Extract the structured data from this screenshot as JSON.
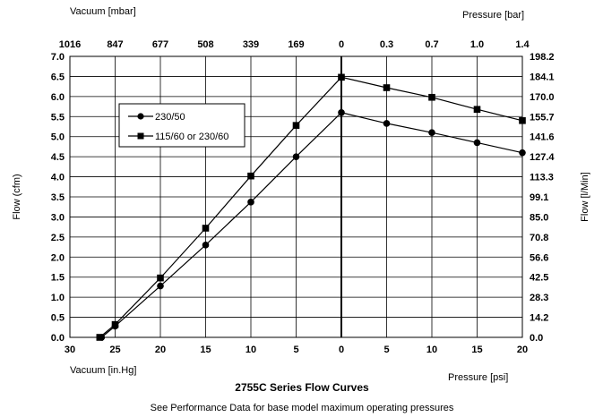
{
  "chart_data": {
    "type": "line",
    "title": "2755C Series Flow Curves",
    "subtitle": "See Performance Data for base model maximum operating pressures",
    "ylabel_left": "Flow (cfm)",
    "ylabel_right": "Flow [l/Min]",
    "xlabel_bottom_left": "Vacuum [in.Hg]",
    "xlabel_bottom_right": "Pressure [psi]",
    "xlabel_top_left": "Vacuum [mbar]",
    "xlabel_top_right": "Pressure [bar]",
    "ylim": [
      0,
      7
    ],
    "xlim": [
      -30,
      20
    ],
    "y_ticks": [
      "0.0",
      "0.5",
      "1.0",
      "1.5",
      "2.0",
      "2.5",
      "3.0",
      "3.5",
      "4.0",
      "4.5",
      "5.0",
      "5.5",
      "6.0",
      "6.5",
      "7.0"
    ],
    "x_ticks_bottom": [
      "30",
      "25",
      "20",
      "15",
      "10",
      "5",
      "0",
      "5",
      "10",
      "15",
      "20"
    ],
    "x_ticks_top": [
      "1016",
      "847",
      "677",
      "508",
      "339",
      "169",
      "0",
      "0.3",
      "0.7",
      "1.0",
      "1.4"
    ],
    "y_ticks_right": [
      "0.0",
      "14.2",
      "28.3",
      "42.5",
      "56.6",
      "70.8",
      "85.0",
      "99.1",
      "113.3",
      "127.4",
      "141.6",
      "155.7",
      "170.0",
      "184.1",
      "198.2"
    ],
    "series": [
      {
        "name": "230/50",
        "marker": "circle",
        "x": [
          -26.5,
          -25,
          -20,
          -15,
          -10,
          -5,
          0,
          5,
          10,
          15,
          20
        ],
        "y": [
          0.0,
          0.28,
          1.28,
          2.3,
          3.37,
          4.5,
          5.6,
          5.33,
          5.1,
          4.85,
          4.6
        ]
      },
      {
        "name": "115/60 or 230/60",
        "marker": "square",
        "x": [
          -26.7,
          -25,
          -20,
          -15,
          -10,
          -5,
          0,
          5,
          10,
          15,
          20
        ],
        "y": [
          0.0,
          0.32,
          1.48,
          2.72,
          4.02,
          5.28,
          6.48,
          6.22,
          5.98,
          5.68,
          5.4
        ]
      }
    ],
    "legend_position": "upper-left",
    "grid": true,
    "divider_x": 0
  }
}
